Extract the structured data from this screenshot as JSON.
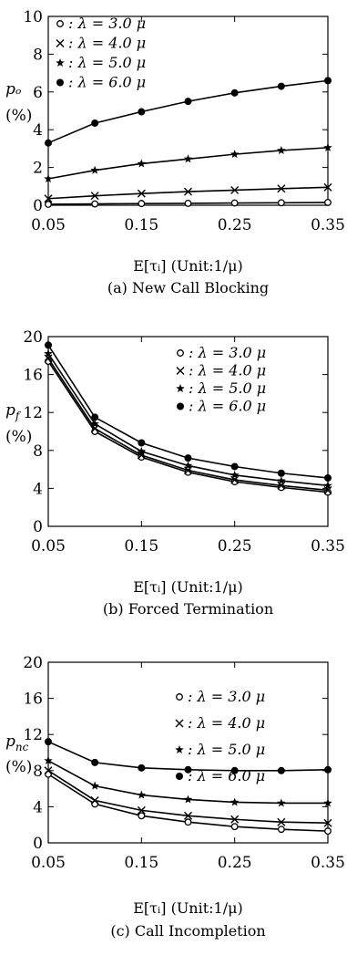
{
  "chart_data": [
    {
      "type": "line",
      "caption": "(a) New Call Blocking",
      "xlabel": "E[τᵢ] (Unit:1/μ)",
      "ylabel": "pₒ",
      "ylabel_unit": "(%)",
      "x": [
        0.05,
        0.1,
        0.15,
        0.2,
        0.25,
        0.3,
        0.35
      ],
      "xticks": [
        "0.05",
        "0.15",
        "0.25",
        "0.35"
      ],
      "xlim": [
        0.05,
        0.35
      ],
      "ylim": [
        0,
        10
      ],
      "yticks": [
        0,
        2,
        4,
        6,
        8,
        10
      ],
      "legend_position": "top-left",
      "series": [
        {
          "name": "λ = 3.0 μ",
          "marker": "○",
          "values": [
            0.05,
            0.07,
            0.09,
            0.1,
            0.12,
            0.13,
            0.15
          ]
        },
        {
          "name": "λ = 4.0 μ",
          "marker": "×",
          "values": [
            0.35,
            0.5,
            0.62,
            0.72,
            0.8,
            0.88,
            0.95
          ]
        },
        {
          "name": "λ = 5.0 μ",
          "marker": "★",
          "values": [
            1.4,
            1.85,
            2.2,
            2.45,
            2.7,
            2.9,
            3.05
          ]
        },
        {
          "name": "λ = 6.0 μ",
          "marker": "●",
          "values": [
            3.3,
            4.35,
            4.95,
            5.5,
            5.95,
            6.3,
            6.6
          ]
        }
      ]
    },
    {
      "type": "line",
      "caption": "(b) Forced Termination",
      "xlabel": "E[τᵢ] (Unit:1/μ)",
      "ylabel": "p_f",
      "ylabel_unit": "(%)",
      "x": [
        0.05,
        0.1,
        0.15,
        0.2,
        0.25,
        0.3,
        0.35
      ],
      "xticks": [
        "0.05",
        "0.15",
        "0.25",
        "0.35"
      ],
      "xlim": [
        0.05,
        0.35
      ],
      "ylim": [
        0,
        20
      ],
      "yticks": [
        0,
        4,
        8,
        12,
        16,
        20
      ],
      "legend_position": "top-right",
      "series": [
        {
          "name": "λ = 3.0 μ",
          "marker": "○",
          "values": [
            17.4,
            10.0,
            7.3,
            5.7,
            4.7,
            4.1,
            3.6
          ]
        },
        {
          "name": "λ = 4.0 μ",
          "marker": "×",
          "values": [
            17.7,
            10.3,
            7.5,
            5.9,
            4.9,
            4.3,
            3.8
          ]
        },
        {
          "name": "λ = 5.0 μ",
          "marker": "★",
          "values": [
            18.2,
            10.8,
            7.9,
            6.4,
            5.4,
            4.8,
            4.3
          ]
        },
        {
          "name": "λ = 6.0 μ",
          "marker": "●",
          "values": [
            19.1,
            11.5,
            8.8,
            7.2,
            6.3,
            5.6,
            5.1
          ]
        }
      ]
    },
    {
      "type": "line",
      "caption": "(c) Call Incompletion",
      "xlabel": "E[τᵢ] (Unit:1/μ)",
      "ylabel": "p_nc",
      "ylabel_unit": "(%)",
      "x": [
        0.05,
        0.1,
        0.15,
        0.2,
        0.25,
        0.3,
        0.35
      ],
      "xticks": [
        "0.05",
        "0.15",
        "0.25",
        "0.35"
      ],
      "xlim": [
        0.05,
        0.35
      ],
      "ylim": [
        0,
        20
      ],
      "yticks": [
        0,
        4,
        8,
        12,
        16,
        20
      ],
      "legend_position": "top-right",
      "series": [
        {
          "name": "λ = 3.0 μ",
          "marker": "○",
          "values": [
            7.6,
            4.3,
            3.0,
            2.3,
            1.8,
            1.5,
            1.3
          ]
        },
        {
          "name": "λ = 4.0 μ",
          "marker": "×",
          "values": [
            8.0,
            4.7,
            3.6,
            3.0,
            2.6,
            2.3,
            2.2
          ]
        },
        {
          "name": "λ = 5.0 μ",
          "marker": "★",
          "values": [
            9.1,
            6.3,
            5.3,
            4.8,
            4.5,
            4.4,
            4.4
          ]
        },
        {
          "name": "λ = 6.0 μ",
          "marker": "●",
          "values": [
            11.2,
            8.9,
            8.3,
            8.1,
            8.0,
            8.0,
            8.1
          ]
        }
      ]
    }
  ]
}
